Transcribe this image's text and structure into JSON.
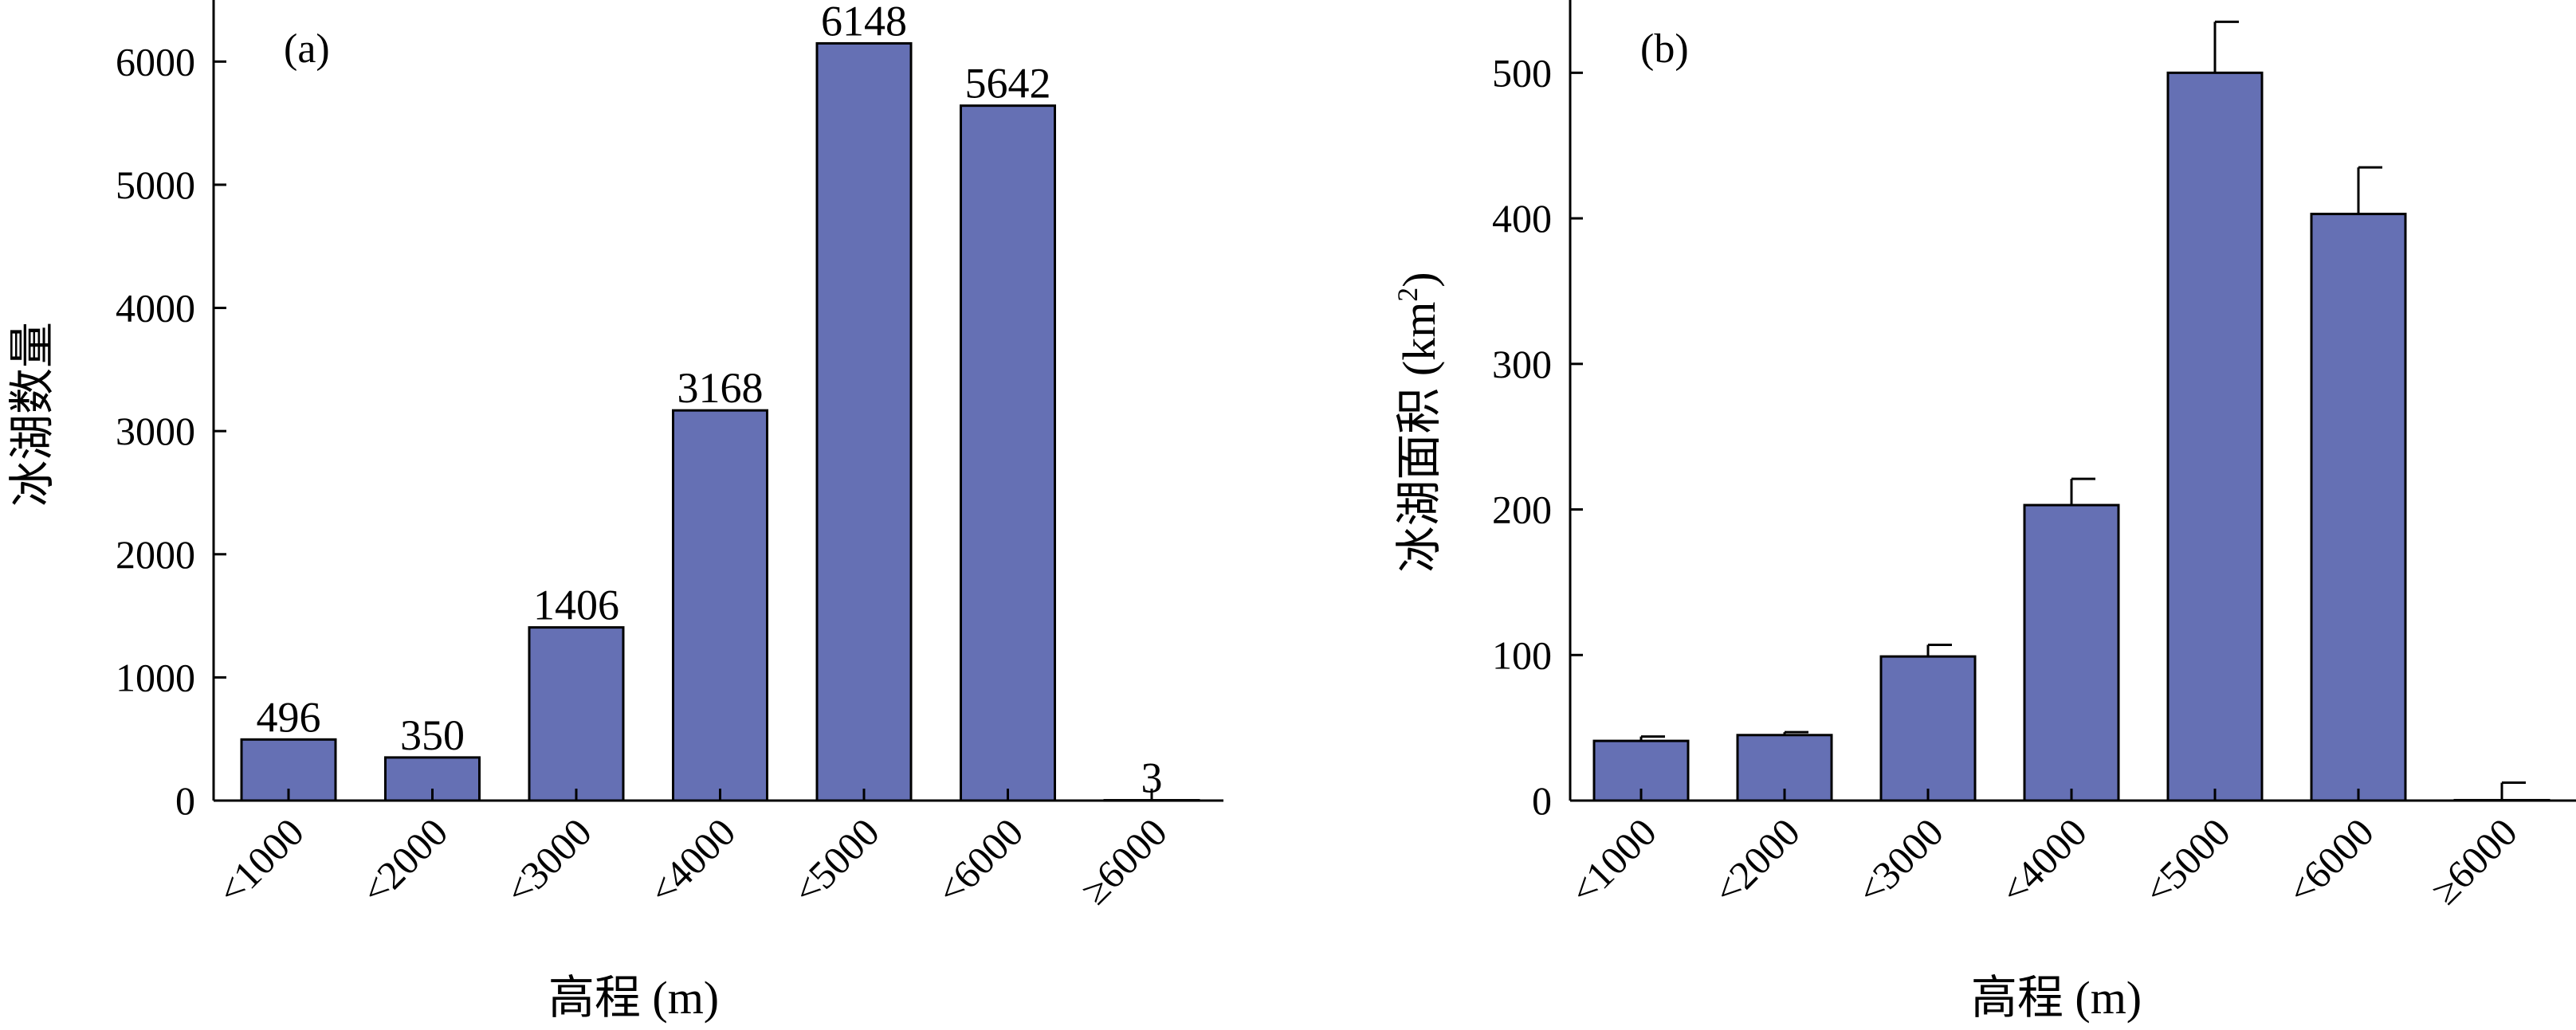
{
  "chart_data": [
    {
      "type": "bar",
      "panel_label": "(a)",
      "categories": [
        "<1000",
        "<2000",
        "<3000",
        "<4000",
        "<5000",
        "<6000",
        "≥6000"
      ],
      "values": [
        496,
        350,
        1406,
        3168,
        6148,
        5642,
        3
      ],
      "data_labels": [
        "496",
        "350",
        "1406",
        "3168",
        "6148",
        "5642",
        "3"
      ],
      "xlabel": "高程 (m)",
      "ylabel": "冰湖数量",
      "ylim": [
        0,
        6500
      ],
      "yticks": [
        0,
        1000,
        2000,
        3000,
        4000,
        5000,
        6000
      ],
      "ytick_labels": [
        "0",
        "1000",
        "2000",
        "3000",
        "4000",
        "5000",
        "6000"
      ],
      "grid": false,
      "bar_color": "#6570b4"
    },
    {
      "type": "bar",
      "panel_label": "(b)",
      "categories": [
        "<1000",
        "<2000",
        "<3000",
        "<4000",
        "<5000",
        "<6000",
        "≥6000"
      ],
      "values": [
        41,
        45,
        99,
        203,
        500,
        403,
        0.3
      ],
      "errors": [
        3,
        2,
        8,
        18,
        35,
        32,
        12
      ],
      "xlabel": "高程 (m)",
      "ylabel_main": "冰湖面积 (km",
      "ylabel_sup": "2",
      "ylabel_end": ")",
      "ylim": [
        0,
        550
      ],
      "yticks": [
        0,
        100,
        200,
        300,
        400,
        500
      ],
      "ytick_labels": [
        "0",
        "100",
        "200",
        "300",
        "400",
        "500"
      ],
      "grid": false,
      "bar_color": "#6570b4"
    }
  ]
}
